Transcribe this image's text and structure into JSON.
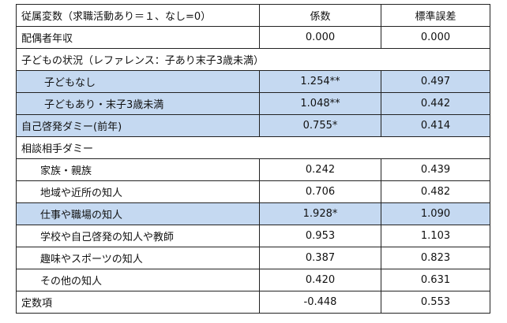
{
  "header": {
    "variable": "従属変数（求職活動あり＝１、なし=0）",
    "coefficient": "係数",
    "std_error": "標準誤差"
  },
  "rows": [
    {
      "label": "配偶者年収",
      "coef": "0.000",
      "se": "0.000"
    },
    {
      "label": "子どもの状況（レファレンス：子あり末子3歳未満）"
    },
    {
      "label": "子どもなし",
      "coef": "1.254**",
      "se": "0.497"
    },
    {
      "label": "子どもあり・末子3歳未満",
      "coef": "1.048**",
      "se": "0.442"
    },
    {
      "label": "自己啓発ダミー(前年)",
      "coef": "0.755*",
      "se": "0.414"
    },
    {
      "label": "相談相手ダミー"
    },
    {
      "label": "家族・親族",
      "coef": "0.242",
      "se": "0.439"
    },
    {
      "label": "地域や近所の知人",
      "coef": "0.706",
      "se": "0.482"
    },
    {
      "label": "仕事や職場の知人",
      "coef": "1.928*",
      "se": "1.090"
    },
    {
      "label": "学校や自己啓発の知人や教師",
      "coef": "0.953",
      "se": "1.103"
    },
    {
      "label": "趣味やスポーツの知人",
      "coef": "0.387",
      "se": "0.823"
    },
    {
      "label": "その他の知人",
      "coef": "0.420",
      "se": "0.631"
    },
    {
      "label": "定数項",
      "coef": "-0.448",
      "se": "0.553"
    }
  ],
  "colors": {
    "highlight": "#c5d9f1",
    "border": "#222222"
  }
}
